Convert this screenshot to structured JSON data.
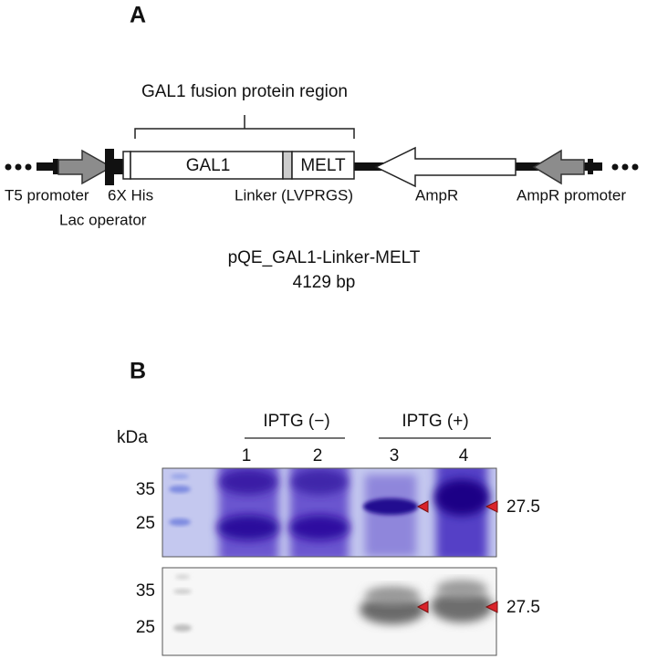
{
  "panel_a": {
    "label": "A",
    "region_label": "GAL1 fusion protein region",
    "features": {
      "gal1": "GAL1",
      "melt": "MELT",
      "t5_promoter": "T5 promoter",
      "his_tag": "6X His",
      "lac_operator": "Lac operator",
      "linker": "Linker (LVPRGS)",
      "ampr": "AmpR",
      "ampr_promoter": "AmpR promoter"
    },
    "plasmid_name": "pQE_GAL1-Linker-MELT",
    "plasmid_size": "4129 bp"
  },
  "panel_b": {
    "label": "B",
    "unit": "kDa",
    "groups": [
      "IPTG (−)",
      "IPTG (+)"
    ],
    "lanes": [
      "1",
      "2",
      "3",
      "4"
    ],
    "blots": [
      {
        "markers": [
          35,
          25
        ],
        "band_label": 27.5
      },
      {
        "markers": [
          35,
          25
        ],
        "band_label": 27.5
      }
    ]
  }
}
